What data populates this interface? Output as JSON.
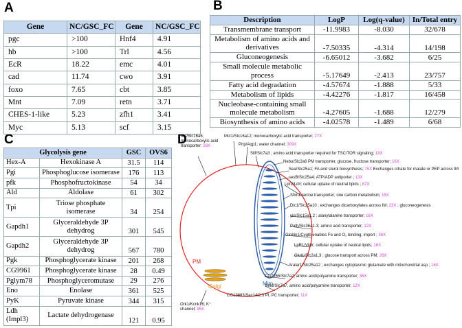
{
  "panels": {
    "A": {
      "label": "A",
      "table": {
        "header": [
          "Gene",
          "NC/GSC_FC",
          "Gene",
          "NC/GSC_FC"
        ],
        "rows": [
          [
            "pgc",
            ">100",
            "Hnf4",
            "4.91"
          ],
          [
            "hb",
            ">100",
            "Trl",
            "4.56"
          ],
          [
            "EcR",
            "18.22",
            "emc",
            "4.01"
          ],
          [
            "cad",
            "11.74",
            "cwo",
            "3.91"
          ],
          [
            "foxo",
            "7.65",
            "cbt",
            "3.85"
          ],
          [
            "Mnt",
            "7.09",
            "retn",
            "3.71"
          ],
          [
            "CHES-1-like",
            "5.23",
            "zfh1",
            "3.41"
          ],
          [
            "Myc",
            "5.13",
            "scf",
            "3.15"
          ]
        ]
      }
    },
    "B": {
      "label": "B",
      "table": {
        "header": [
          "Description",
          "LogP",
          "Log(q-value)",
          "In/Total entry"
        ],
        "rows": [
          [
            "Transmembrane transport",
            "-11.9983",
            "-8.030",
            "32/678"
          ],
          [
            "Metabolism of amino acids and derivatives",
            "-7.50335",
            "-4.314",
            "14/198"
          ],
          [
            "Gluconeogenesis",
            "-6.65012",
            "-3.682",
            "6/25"
          ],
          [
            "Small molecule metabolic process",
            "-5.17649",
            "-2.413",
            "23/757"
          ],
          [
            "Fatty acid degradation",
            "-4.57674",
            "-1.888",
            "5/33"
          ],
          [
            "Metabolism of lipids",
            "-4.42276",
            "-1.817",
            "16/458"
          ],
          [
            "Nucleobase-containing small molecule metabolism",
            "-4.27605",
            "-1.688",
            "12/279"
          ],
          [
            "Biosynthesis of amino acids",
            "-4.02578",
            "-1.489",
            "6/68"
          ]
        ]
      }
    },
    "C": {
      "label": "C",
      "table": {
        "header": [
          "Glycolysis gene",
          "GSC",
          "OVS6"
        ],
        "rows": [
          [
            "Hex-A",
            "Hexokinase A",
            "31.5",
            "114"
          ],
          [
            "Pgi",
            "Phosphoglucose isomerase",
            "176",
            "113"
          ],
          [
            "pfk",
            "Phosphofructokinase",
            "54",
            "34"
          ],
          [
            "Ald",
            "Aldolase",
            "61",
            "302"
          ],
          [
            "Tpi",
            "Triose phosphate isomerase",
            "34",
            "254"
          ],
          [
            "Gapdh1",
            "Glyceraldehyde 3P dehydrog",
            "301",
            "545"
          ],
          [
            "Gapdh2",
            "Glyceraldehyde 3P dehydrog",
            "567",
            "780"
          ],
          [
            "Pgk",
            "Phosphoglycerate kinase",
            "201",
            "268"
          ],
          [
            "CG9961",
            "Phosphoglycerate kinase",
            "28",
            "0.49"
          ],
          [
            "Pglym78",
            "Phosphoglyceromutase",
            "29",
            "276"
          ],
          [
            "Eno",
            "Enolase",
            "361",
            "525"
          ],
          [
            "PyK",
            "Pyruvate kinase",
            "344",
            "315"
          ],
          [
            "Ldh (Impl3)",
            "Lactate dehydrogenase",
            "121",
            "0.95"
          ]
        ]
      }
    },
    "D": {
      "label": "D",
      "compartments": {
        "pm": "PM",
        "golgi": "Golgi",
        "mito": "Mito"
      },
      "transporters": [
        {
          "text": "out/Slc16a6; monocarboxylic acid transporter;",
          "fold": "28X"
        },
        {
          "text": "Mct1/Slc16a12; monocarboxylic acid transporter;",
          "fold": "27X"
        },
        {
          "text": "Prip/Aqp1; water channel;",
          "fold": "309X"
        },
        {
          "text": "Slif/Slc7a3 ; amino acid transporter required for TSC/TOR signaling;",
          "fold": "18X"
        },
        {
          "text": "Nebu/Slc2a6 PM transporter, glucose, fructose transporter;",
          "fold": "16X"
        },
        {
          "text": "Sea/Slc25a1; FA and sterol biosynthesis;",
          "fold": "75X",
          "suffix": "Exchanges citrate for malate or PEP across IM"
        },
        {
          "text": "sesB/Slc25a4; ATP/ADP antiporter ;",
          "fold": "13X"
        },
        {
          "text": "Lpr2/Ldlr; cellular uptake of neutral lipids ;",
          "fold": "87X"
        },
        {
          "text": "Sfxn1 serine transporter; one carbon metabolism;",
          "fold": "15X"
        },
        {
          "text": "Dic1/Slc25a10 ; exchanges dicarboxylates across IM;",
          "fold": "23X",
          "suffix": "; gluconeogenesis"
        },
        {
          "text": "yin/Slc15a1,2 ; alanylalanine transporter;",
          "fold": "16X"
        },
        {
          "text": "Path/Slc36a1-3; amino acid transporter;",
          "fold": "12X"
        },
        {
          "text": "Globin1/Cyglb enables Fe and O₂ binding, import ;",
          "fold": "36X"
        },
        {
          "text": "LpR1/Vldlr; cellular uptake of neutral lipids;",
          "fold": "16X"
        },
        {
          "text": "Glut1/Slc2a1,3 ; glucose transport across PM;",
          "fold": "26X"
        },
        {
          "text": "Aralar1/Slc25a12 ; exchanges cytoplasmic glutamate with mitochondrial asp ;",
          "fold": "16X"
        },
        {
          "text": "CG7255/Slc7a2, amino acid/polyamine transporter;",
          "fold": "36X"
        },
        {
          "text": "Mnd/Slc7a7, amino acid/polyamine transporter;",
          "fold": "12X"
        },
        {
          "text": "CG13893/Sec14l2,3 PI, PC transporter;",
          "fold": "11X"
        },
        {
          "text": "Ork1/Kcnk16; K⁺ channel;",
          "fold": "95X"
        }
      ]
    }
  }
}
